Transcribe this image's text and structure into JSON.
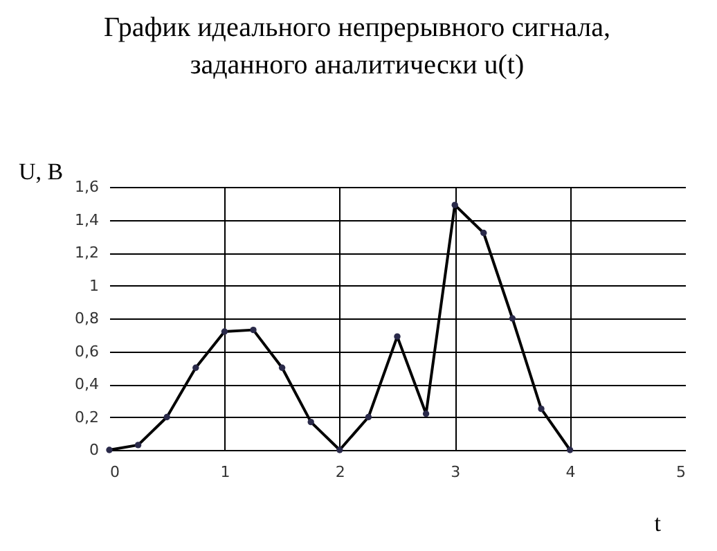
{
  "chart_data": {
    "type": "line",
    "title": "График идеального непрерывного сигнала,\nзаданного аналитически u(t)",
    "xlabel": "t",
    "ylabel": "U, В",
    "x": [
      0,
      0.25,
      0.5,
      0.75,
      1,
      1.25,
      1.5,
      1.75,
      2,
      2.25,
      2.5,
      2.75,
      3,
      3.25,
      3.5,
      3.75,
      4
    ],
    "series": [
      {
        "color": "#000000",
        "values": [
          0,
          0.03,
          0.2,
          0.5,
          0.72,
          0.73,
          0.5,
          0.17,
          0,
          0.2,
          0.69,
          0.22,
          1.49,
          1.32,
          0.8,
          0.25,
          0
        ]
      }
    ],
    "xlim": [
      0,
      5
    ],
    "xticks": [
      0,
      1,
      2,
      3,
      4,
      5
    ],
    "ylim": [
      0,
      1.6
    ],
    "yticks": [
      0,
      {
        "value": 0.2,
        "label": "0,2"
      },
      {
        "value": 0.4,
        "label": "0,4"
      },
      {
        "value": 0.6,
        "label": "0,6"
      },
      {
        "value": 0.8,
        "label": "0,8"
      },
      1,
      {
        "value": 1.2,
        "label": "1,2"
      },
      {
        "value": 1.4,
        "label": "1,4"
      },
      {
        "value": 1.6,
        "label": "1,6"
      }
    ],
    "grid": true,
    "marker": "circle",
    "line_style": "solid"
  }
}
